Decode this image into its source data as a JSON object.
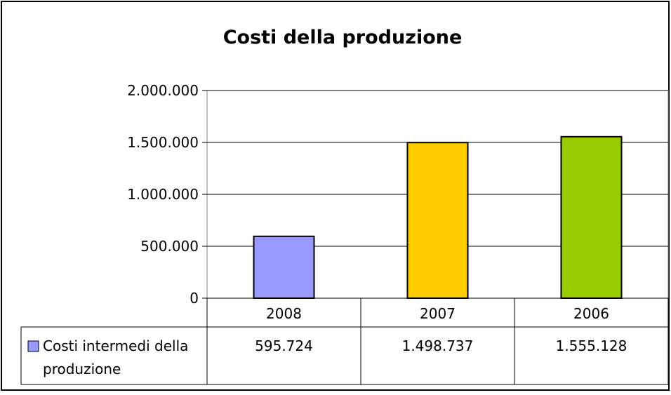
{
  "chart_data": {
    "type": "bar",
    "title": "Costi della produzione",
    "categories": [
      "2008",
      "2007",
      "2006"
    ],
    "series": [
      {
        "name": "Costi intermedi della produzione",
        "name_lines": [
          "Costi intermedi della",
          "produzione"
        ],
        "values": [
          595724,
          1498737,
          1555128
        ],
        "value_labels": [
          "595.724",
          "1.498.737",
          "1.555.128"
        ],
        "colors": [
          "#9999ff",
          "#ffcc00",
          "#99cc00"
        ]
      }
    ],
    "ylim": [
      0,
      2000000
    ],
    "yticks": [
      0,
      500000,
      1000000,
      1500000,
      2000000
    ],
    "ytick_labels": [
      "0",
      "500.000",
      "1.000.000",
      "1.500.000",
      "2.000.000"
    ],
    "grid": true,
    "legend_position": "data-table"
  }
}
